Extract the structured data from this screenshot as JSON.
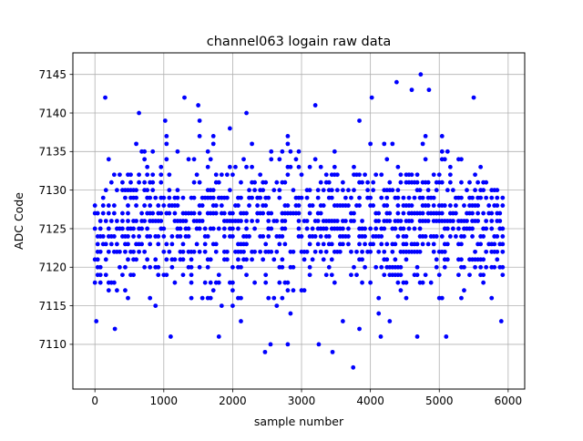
{
  "chart_data": {
    "type": "scatter",
    "title": "channel063 logain raw data",
    "xlabel": "sample number",
    "ylabel": "ADC Code",
    "xlim": [
      -320,
      6240
    ],
    "ylim": [
      7104.2,
      7147.8
    ],
    "xticks": [
      0,
      1000,
      2000,
      3000,
      4000,
      5000,
      6000
    ],
    "yticks": [
      7110,
      7115,
      7120,
      7125,
      7130,
      7135,
      7140,
      7145
    ],
    "grid": true,
    "marker_color": "#0000ff",
    "series": [
      {
        "n_samples": 5920,
        "x_step": 40,
        "x": [
          0,
          5920
        ],
        "y_center": 7125.5,
        "y_levels_min": 7107,
        "y_levels_max": 7145,
        "outliers": [
          {
            "x": 20,
            "y": 7113
          },
          {
            "x": 150,
            "y": 7142
          },
          {
            "x": 290,
            "y": 7112
          },
          {
            "x": 640,
            "y": 7140
          },
          {
            "x": 1020,
            "y": 7139
          },
          {
            "x": 1100,
            "y": 7111
          },
          {
            "x": 1300,
            "y": 7142
          },
          {
            "x": 1500,
            "y": 7141
          },
          {
            "x": 1800,
            "y": 7111
          },
          {
            "x": 2200,
            "y": 7140
          },
          {
            "x": 2470,
            "y": 7109
          },
          {
            "x": 2550,
            "y": 7110
          },
          {
            "x": 2800,
            "y": 7110
          },
          {
            "x": 3200,
            "y": 7141
          },
          {
            "x": 3250,
            "y": 7110
          },
          {
            "x": 3450,
            "y": 7109
          },
          {
            "x": 3750,
            "y": 7107
          },
          {
            "x": 4020,
            "y": 7142
          },
          {
            "x": 4150,
            "y": 7111
          },
          {
            "x": 4380,
            "y": 7144
          },
          {
            "x": 4600,
            "y": 7143
          },
          {
            "x": 4730,
            "y": 7145
          },
          {
            "x": 4850,
            "y": 7143
          },
          {
            "x": 5100,
            "y": 7111
          },
          {
            "x": 5500,
            "y": 7142
          },
          {
            "x": 5900,
            "y": 7113
          }
        ]
      }
    ]
  }
}
